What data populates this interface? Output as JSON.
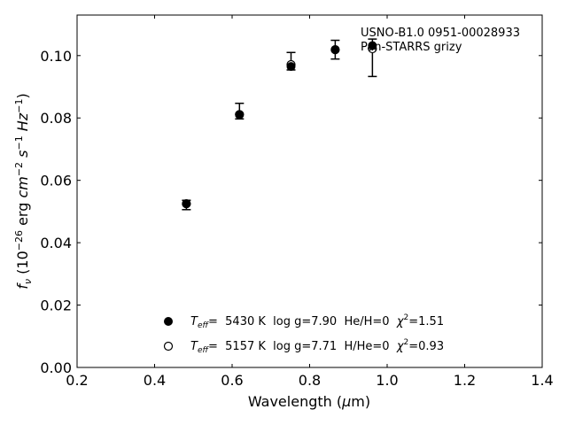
{
  "chart_data": {
    "type": "scatter",
    "xlabel": "Wavelength (μm)",
    "ylabel": "fν (10⁻²⁶ erg cm⁻² s⁻¹ Hz⁻¹)",
    "xlim": [
      0.2,
      1.4
    ],
    "ylim": [
      0.0,
      0.113
    ],
    "xticks": [
      0.2,
      0.4,
      0.6,
      0.8,
      1.0,
      1.2,
      1.4
    ],
    "xtick_labels": [
      "0.2",
      "0.4",
      "0.6",
      "0.8",
      "1.0",
      "1.2",
      "1.4"
    ],
    "yticks": [
      0.0,
      0.02,
      0.04,
      0.06,
      0.08,
      0.1
    ],
    "ytick_labels": [
      "0.00",
      "0.02",
      "0.04",
      "0.06",
      "0.08",
      "0.10"
    ],
    "grid": false,
    "annotation": [
      "USNO-B1.0 0951-00028933",
      "Pan-STARRS grizy"
    ],
    "legend_position": "bottom-center",
    "observed": {
      "x": [
        0.482,
        0.619,
        0.752,
        0.866,
        0.962
      ],
      "y": [
        0.0521,
        0.0822,
        0.0982,
        0.1019,
        0.0993
      ],
      "yerr": [
        0.0015,
        0.0025,
        0.0028,
        0.003,
        0.006
      ],
      "marker": "capped-errorbar"
    },
    "series": [
      {
        "marker": "filled-circle",
        "x": [
          0.482,
          0.619,
          0.752,
          0.866,
          0.962
        ],
        "y": [
          0.0525,
          0.0811,
          0.0965,
          0.1019,
          0.1032
        ],
        "legend": {
          "teff_symbol": "T",
          "teff_sub": "eff",
          "teff_eq": "=  5430 K  log g=7.90  He/H=0  ",
          "chi_symbol": "χ",
          "chi_sup": "2",
          "chi_val": "=1.51"
        }
      },
      {
        "marker": "open-circle",
        "x": [
          0.482,
          0.619,
          0.752,
          0.866,
          0.962
        ],
        "y": [
          0.0525,
          0.0811,
          0.0971,
          0.1019,
          0.1022
        ],
        "legend": {
          "teff_symbol": "T",
          "teff_sub": "eff",
          "teff_eq": "=  5157 K  log g=7.71  H/He=0  ",
          "chi_symbol": "χ",
          "chi_sup": "2",
          "chi_val": "=0.93"
        }
      }
    ]
  }
}
